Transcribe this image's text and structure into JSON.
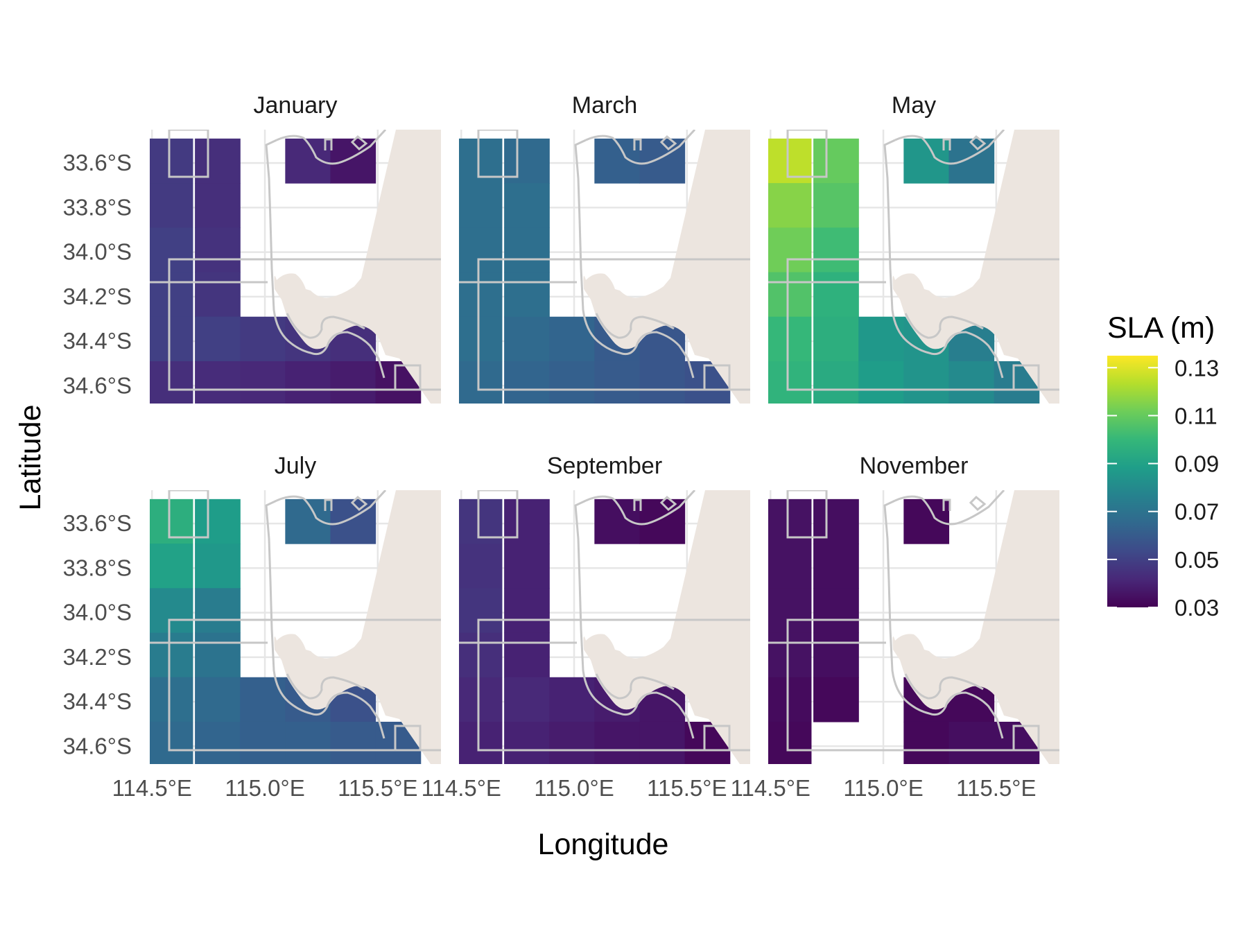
{
  "chart_data": {
    "type": "heatmap",
    "xlabel": "Longitude",
    "ylabel": "Latitude",
    "x_ticks": [
      "114.5°E",
      "115.0°E",
      "115.5°E"
    ],
    "x_tick_values": [
      114.5,
      115.0,
      115.5
    ],
    "y_ticks": [
      "33.6°S",
      "33.8°S",
      "34.0°S",
      "34.2°S",
      "34.4°S",
      "34.6°S"
    ],
    "y_tick_values": [
      -33.6,
      -33.8,
      -34.0,
      -34.2,
      -34.4,
      -34.6
    ],
    "xlim": [
      114.49,
      115.78
    ],
    "ylim": [
      -34.68,
      -33.45
    ],
    "grid": true,
    "legend": {
      "title": "SLA (m)",
      "position": "right",
      "ticks": [
        "0.13",
        "0.11",
        "0.09",
        "0.07",
        "0.05",
        "0.03"
      ],
      "tick_values": [
        0.13,
        0.11,
        0.09,
        0.07,
        0.05,
        0.03
      ],
      "range": [
        0.03,
        0.135
      ],
      "palette": "viridis"
    },
    "cell_columns_lon": [
      114.38,
      114.58,
      114.79,
      114.99,
      115.19,
      115.39,
      115.59
    ],
    "cell_rows_lat": [
      -33.59,
      -33.79,
      -33.99,
      -34.19,
      -34.39,
      -34.59
    ],
    "panels": [
      {
        "title": "January",
        "sla": [
          [
            0.05,
            0.048,
            0.044,
            null,
            0.042,
            0.036,
            null
          ],
          [
            0.05,
            0.048,
            0.044,
            null,
            null,
            null,
            null
          ],
          [
            0.054,
            0.05,
            0.045,
            null,
            null,
            null,
            null
          ],
          [
            0.052,
            0.05,
            0.046,
            null,
            null,
            null,
            null
          ],
          [
            0.048,
            0.05,
            0.05,
            0.048,
            0.046,
            0.044,
            null
          ],
          [
            0.044,
            0.044,
            0.043,
            0.042,
            0.04,
            0.038,
            0.035
          ]
        ]
      },
      {
        "title": "March",
        "sla": [
          [
            0.068,
            0.068,
            0.066,
            null,
            0.062,
            0.06,
            null
          ],
          [
            0.068,
            0.068,
            0.068,
            null,
            null,
            null,
            null
          ],
          [
            0.068,
            0.068,
            0.068,
            null,
            null,
            null,
            null
          ],
          [
            0.068,
            0.068,
            0.068,
            null,
            null,
            null,
            null
          ],
          [
            0.068,
            0.068,
            0.066,
            0.064,
            0.06,
            0.058,
            null
          ],
          [
            0.066,
            0.066,
            0.064,
            0.062,
            0.06,
            0.058,
            0.056
          ]
        ]
      },
      {
        "title": "May",
        "sla": [
          [
            null,
            0.125,
            0.11,
            null,
            0.085,
            0.07,
            null
          ],
          [
            0.123,
            0.116,
            0.107,
            null,
            null,
            null,
            null
          ],
          [
            0.118,
            0.112,
            0.102,
            null,
            null,
            null,
            null
          ],
          [
            0.112,
            0.106,
            0.097,
            null,
            null,
            null,
            null
          ],
          [
            0.104,
            0.1,
            0.096,
            0.086,
            0.084,
            0.075,
            null
          ],
          [
            0.1,
            0.098,
            0.094,
            0.088,
            0.084,
            0.08,
            0.074
          ]
        ]
      },
      {
        "title": "July",
        "sla": [
          [
            0.1,
            0.096,
            0.088,
            null,
            0.066,
            0.056,
            null
          ],
          [
            0.094,
            0.09,
            0.086,
            null,
            null,
            null,
            null
          ],
          [
            0.084,
            0.08,
            0.074,
            null,
            null,
            null,
            null
          ],
          [
            0.076,
            0.074,
            0.07,
            null,
            null,
            null,
            null
          ],
          [
            0.07,
            0.068,
            0.066,
            0.062,
            0.06,
            0.056,
            null
          ],
          [
            0.066,
            0.066,
            0.064,
            0.062,
            0.062,
            0.06,
            0.06
          ]
        ]
      },
      {
        "title": "September",
        "sla": [
          [
            0.052,
            0.046,
            0.04,
            null,
            0.034,
            0.032,
            null
          ],
          [
            0.05,
            0.045,
            0.04,
            null,
            null,
            null,
            null
          ],
          [
            0.052,
            0.046,
            0.04,
            null,
            null,
            null,
            null
          ],
          [
            0.048,
            0.044,
            0.04,
            null,
            null,
            null,
            null
          ],
          [
            0.044,
            0.042,
            0.042,
            0.04,
            0.038,
            0.036,
            null
          ],
          [
            0.042,
            0.04,
            0.04,
            0.038,
            0.036,
            0.036,
            0.032
          ]
        ]
      },
      {
        "title": "November",
        "sla": [
          [
            0.036,
            0.035,
            0.034,
            null,
            0.032,
            null,
            null
          ],
          [
            0.036,
            0.035,
            0.034,
            null,
            null,
            null,
            null
          ],
          [
            0.036,
            0.035,
            0.034,
            null,
            null,
            null,
            null
          ],
          [
            0.036,
            0.035,
            0.034,
            null,
            null,
            null,
            null
          ],
          [
            0.034,
            0.033,
            0.032,
            null,
            0.032,
            0.032,
            null
          ],
          [
            null,
            0.032,
            null,
            null,
            0.032,
            0.034,
            0.034
          ]
        ]
      }
    ]
  },
  "colors": {
    "land": "#ECE5DF",
    "grid": "#E6E6E6",
    "outline": "#C7C7C7",
    "background": "#FFFFFF"
  }
}
